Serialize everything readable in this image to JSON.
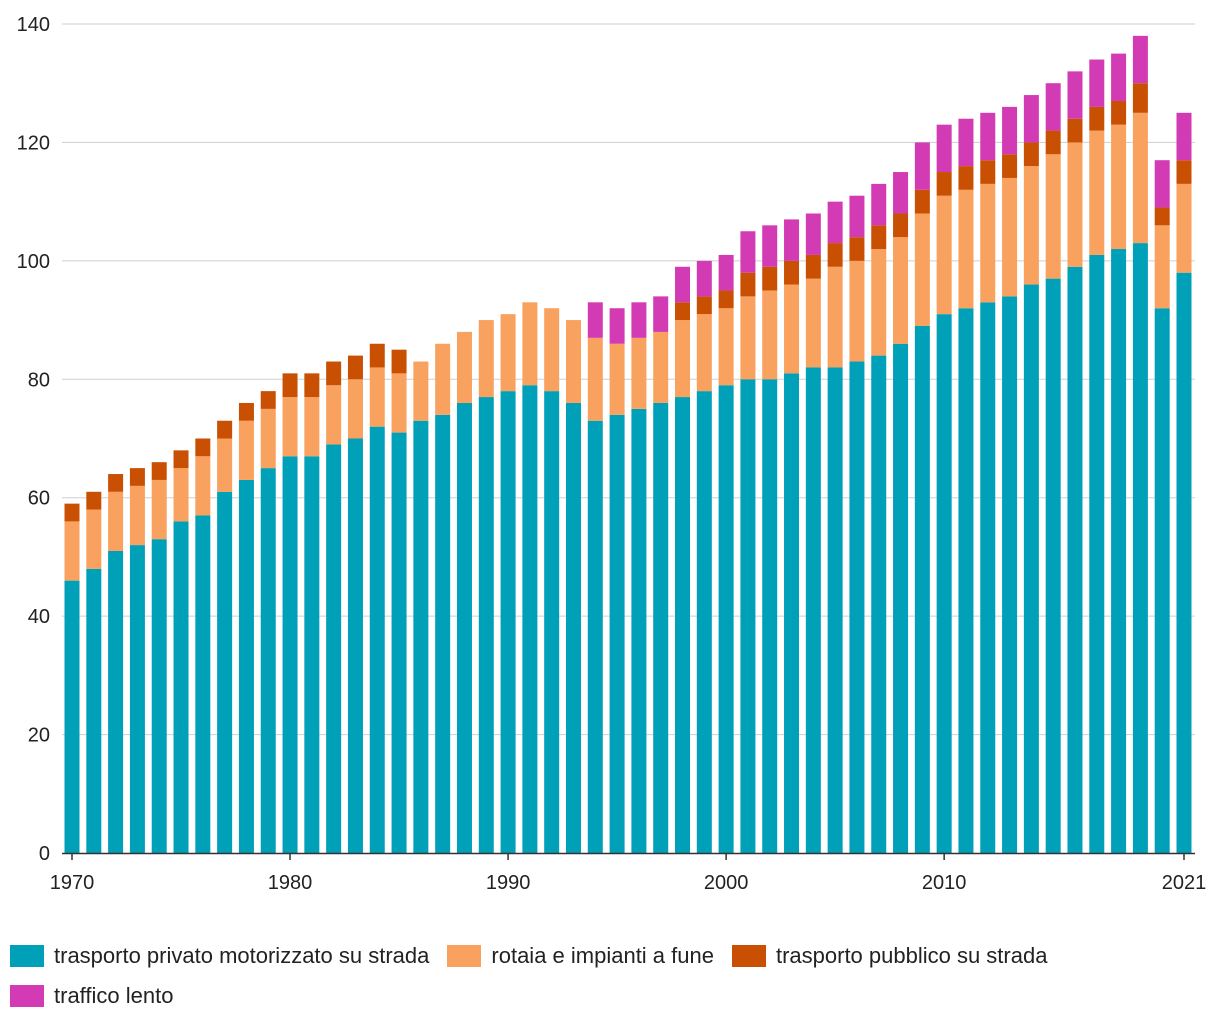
{
  "chart_data": {
    "type": "bar",
    "stacked": true,
    "x": [
      1970,
      1971,
      1972,
      1973,
      1974,
      1975,
      1976,
      1977,
      1978,
      1979,
      1980,
      1981,
      1982,
      1983,
      1984,
      1985,
      1986,
      1987,
      1988,
      1989,
      1990,
      1991,
      1992,
      1993,
      1994,
      1995,
      1996,
      1997,
      1998,
      1999,
      2000,
      2001,
      2002,
      2003,
      2004,
      2005,
      2006,
      2007,
      2008,
      2009,
      2010,
      2011,
      2012,
      2013,
      2014,
      2015,
      2016,
      2017,
      2018,
      2019,
      2020,
      2021
    ],
    "x_tick_labels": [
      "1970",
      "1980",
      "1990",
      "2000",
      "2010",
      "2021"
    ],
    "x_tick_values": [
      1970,
      1980,
      1990,
      2000,
      2010,
      2021
    ],
    "ylim": [
      0,
      140
    ],
    "y_ticks": [
      0,
      20,
      40,
      60,
      80,
      100,
      120,
      140
    ],
    "grid": "horizontal",
    "legend_position": "bottom",
    "series": [
      {
        "name": "trasporto privato motorizzato su strada",
        "color": "#00a0b8",
        "values": [
          46,
          48,
          51,
          52,
          53,
          56,
          57,
          61,
          63,
          65,
          67,
          67,
          69,
          70,
          72,
          71,
          73,
          74,
          76,
          77,
          78,
          79,
          78,
          76,
          73,
          74,
          75,
          76,
          77,
          78,
          79,
          80,
          80,
          81,
          82,
          82,
          83,
          84,
          86,
          89,
          91,
          92,
          93,
          94,
          96,
          97,
          99,
          101,
          102,
          103,
          92,
          98
        ]
      },
      {
        "name": "rotaia e impianti a fune",
        "color": "#f9a15e",
        "values": [
          10,
          10,
          10,
          10,
          10,
          9,
          10,
          9,
          10,
          10,
          10,
          10,
          10,
          10,
          10,
          10,
          10,
          12,
          12,
          13,
          13,
          14,
          14,
          14,
          14,
          12,
          12,
          12,
          13,
          13,
          13,
          14,
          15,
          15,
          15,
          17,
          17,
          18,
          18,
          19,
          20,
          20,
          20,
          20,
          20,
          21,
          21,
          21,
          21,
          22,
          14,
          15
        ]
      },
      {
        "name": "trasporto pubblico su strada",
        "color": "#c94f03",
        "values": [
          3,
          3,
          3,
          3,
          3,
          3,
          3,
          3,
          3,
          3,
          4,
          4,
          4,
          4,
          4,
          4,
          0,
          0,
          0,
          0,
          0,
          0,
          0,
          0,
          0,
          0,
          0,
          0,
          3,
          3,
          3,
          4,
          4,
          4,
          4,
          4,
          4,
          4,
          4,
          4,
          4,
          4,
          4,
          4,
          4,
          4,
          4,
          4,
          4,
          5,
          3,
          4
        ]
      },
      {
        "name": "traffico lento",
        "color": "#d23bb3",
        "values": [
          0,
          0,
          0,
          0,
          0,
          0,
          0,
          0,
          0,
          0,
          0,
          0,
          0,
          0,
          0,
          0,
          0,
          0,
          0,
          0,
          0,
          0,
          0,
          0,
          6,
          6,
          6,
          6,
          6,
          6,
          6,
          7,
          7,
          7,
          7,
          7,
          7,
          7,
          7,
          8,
          8,
          8,
          8,
          8,
          8,
          8,
          8,
          8,
          8,
          8,
          8,
          8
        ]
      }
    ]
  }
}
